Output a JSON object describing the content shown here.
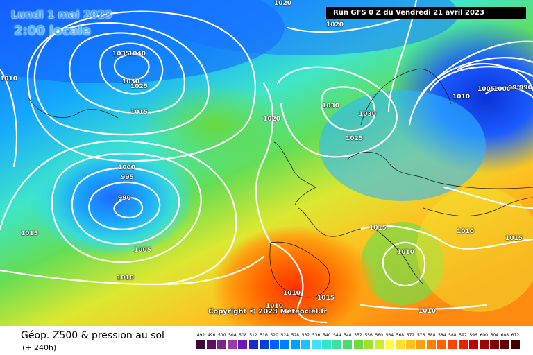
{
  "header": {
    "date": "Lundi 1 mai 2023",
    "time": "2:00 locale",
    "run": "Run GFS 0 Z du Vendredi 21 avril 2023"
  },
  "copyright": "Copyright © 2023 Meteociel.fr",
  "footer": {
    "title": "Géop. Z500 & pression au sol",
    "subtitle": "(+ 240h)"
  },
  "isobar_labels": [
    "1020",
    "1020",
    "1010",
    "1035",
    "1040",
    "1030",
    "1025",
    "1015",
    "1020",
    "1030",
    "1030",
    "1025",
    "1010",
    "1005",
    "1000",
    "995",
    "990",
    "1000",
    "995",
    "990",
    "1015",
    "1005",
    "1010",
    "1015",
    "1010",
    "1010",
    "1015",
    "1010",
    "1010",
    "1010",
    "1015"
  ],
  "legend": {
    "labels": [
      "492",
      "496",
      "500",
      "504",
      "508",
      "512",
      "516",
      "520",
      "524",
      "528",
      "532",
      "536",
      "540",
      "544",
      "548",
      "552",
      "556",
      "560",
      "564",
      "568",
      "572",
      "576",
      "580",
      "584",
      "588",
      "592",
      "596",
      "600",
      "604",
      "608",
      "612"
    ],
    "colors": [
      "#3b0a3b",
      "#5a1260",
      "#7a2a86",
      "#9a3aa6",
      "#6a1ab8",
      "#1a2acc",
      "#0040e0",
      "#0060ff",
      "#0080ff",
      "#00a0ff",
      "#20c0ff",
      "#40e0ff",
      "#30e8c8",
      "#40e0a0",
      "#50d870",
      "#70d840",
      "#a0e030",
      "#d0e830",
      "#ffff40",
      "#ffe030",
      "#ffc020",
      "#ffa010",
      "#ff8000",
      "#ff6000",
      "#ff4000",
      "#e82000",
      "#c00000",
      "#a00000",
      "#800000",
      "#600000",
      "#400000"
    ]
  }
}
